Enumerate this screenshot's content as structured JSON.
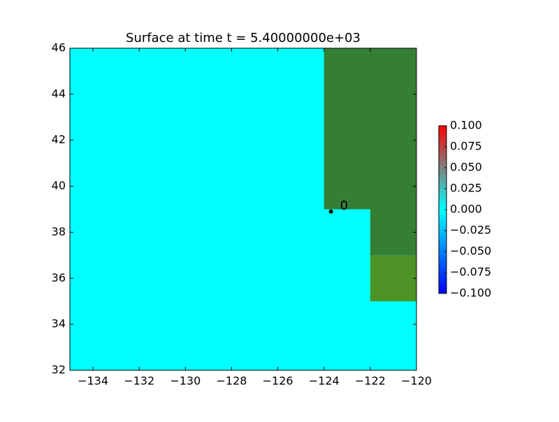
{
  "chart_data": {
    "type": "pcolor",
    "title": "Surface at time t = 5.40000000e+03",
    "background_color": "#00ffff",
    "xlim": [
      -135,
      -120
    ],
    "ylim": [
      32,
      46
    ],
    "xticks": [
      {
        "value": -134,
        "label": "−134"
      },
      {
        "value": -132,
        "label": "−132"
      },
      {
        "value": -130,
        "label": "−130"
      },
      {
        "value": -128,
        "label": "−128"
      },
      {
        "value": -126,
        "label": "−126"
      },
      {
        "value": -124,
        "label": "−124"
      },
      {
        "value": -122,
        "label": "−122"
      },
      {
        "value": -120,
        "label": "−120"
      }
    ],
    "yticks": [
      32,
      34,
      36,
      38,
      40,
      42,
      44,
      46
    ],
    "regions": [
      {
        "x": [
          -124,
          -120
        ],
        "y": [
          39,
          46
        ],
        "color": "#357f35"
      },
      {
        "x": [
          -122,
          -120
        ],
        "y": [
          37,
          39
        ],
        "color": "#357f35"
      },
      {
        "x": [
          -122,
          -120
        ],
        "y": [
          35,
          37
        ],
        "color": "#4e9325"
      }
    ],
    "gauges": [
      {
        "label": "0",
        "x": -123.7,
        "y": 38.9
      }
    ],
    "colorbar": {
      "lim": [
        -0.1,
        0.1
      ],
      "colors": [
        "#0000ff",
        "#00ffff",
        "#ff0000"
      ],
      "ticks": [
        {
          "value": -0.1,
          "label": "−0.100"
        },
        {
          "value": -0.075,
          "label": "−0.075"
        },
        {
          "value": -0.05,
          "label": "−0.050"
        },
        {
          "value": -0.025,
          "label": "−0.025"
        },
        {
          "value": 0,
          "label": "0.000"
        },
        {
          "value": 0.025,
          "label": "0.025"
        },
        {
          "value": 0.05,
          "label": "0.050"
        },
        {
          "value": 0.075,
          "label": "0.075"
        },
        {
          "value": 0.1,
          "label": "0.100"
        }
      ]
    }
  }
}
